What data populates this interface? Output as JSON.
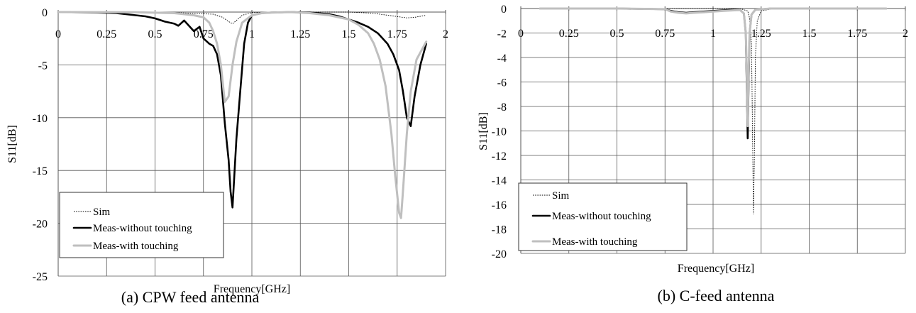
{
  "chart_data": [
    {
      "type": "line",
      "caption": "(a) CPW feed antenna",
      "xlabel": "Frequency[GHz]",
      "ylabel": "S11[dB]",
      "xlim": [
        0,
        2
      ],
      "ylim": [
        -25,
        0
      ],
      "x_ticks": [
        0,
        0.25,
        0.5,
        0.75,
        1,
        1.25,
        1.5,
        1.75,
        2
      ],
      "x_tick_labels": [
        "0",
        "0.25",
        "0.5",
        "0.75",
        "1",
        "1.25",
        "1.5",
        "1.75",
        "2"
      ],
      "y_ticks": [
        0,
        -5,
        -10,
        -15,
        -20,
        -25
      ],
      "y_tick_labels": [
        "0",
        "-5",
        "-10",
        "-15",
        "-20",
        "-25"
      ],
      "grid": true,
      "legend_position": "bottom-left",
      "series": [
        {
          "name": "Sim",
          "style": "dotted",
          "color": "#000000",
          "x": [
            0.0,
            0.3,
            0.6,
            0.8,
            0.85,
            0.88,
            0.9,
            0.92,
            0.95,
            1.0,
            1.2,
            1.5,
            1.62,
            1.68,
            1.72,
            1.76,
            1.8,
            1.84,
            1.9
          ],
          "y": [
            0,
            -0.02,
            -0.05,
            -0.2,
            -0.5,
            -0.9,
            -1.1,
            -0.8,
            -0.3,
            -0.05,
            0,
            0,
            -0.1,
            -0.25,
            -0.35,
            -0.45,
            -0.55,
            -0.5,
            -0.3
          ]
        },
        {
          "name": "Meas-without touching",
          "style": "solid",
          "color": "#000000",
          "x": [
            0.0,
            0.2,
            0.3,
            0.35,
            0.4,
            0.45,
            0.5,
            0.55,
            0.6,
            0.62,
            0.65,
            0.7,
            0.73,
            0.75,
            0.78,
            0.8,
            0.82,
            0.84,
            0.86,
            0.88,
            0.89,
            0.9,
            0.92,
            0.94,
            0.96,
            0.98,
            1.0,
            1.05,
            1.1,
            1.2,
            1.3,
            1.4,
            1.45,
            1.5,
            1.55,
            1.6,
            1.65,
            1.7,
            1.73,
            1.76,
            1.78,
            1.8,
            1.82,
            1.84,
            1.87,
            1.9
          ],
          "y": [
            0,
            -0.05,
            -0.1,
            -0.2,
            -0.3,
            -0.4,
            -0.6,
            -0.9,
            -1.1,
            -1.3,
            -0.8,
            -1.8,
            -1.4,
            -2.5,
            -3.0,
            -3.2,
            -4.0,
            -6.0,
            -10.5,
            -14.0,
            -17.0,
            -18.5,
            -12.0,
            -7.5,
            -3.0,
            -1.0,
            -0.3,
            -0.1,
            -0.05,
            0,
            -0.05,
            -0.2,
            -0.4,
            -0.7,
            -1.0,
            -1.4,
            -2.0,
            -3.0,
            -4.0,
            -5.5,
            -7.5,
            -10.0,
            -10.8,
            -8.0,
            -5.0,
            -3.0
          ]
        },
        {
          "name": "Meas-with touching",
          "style": "solid",
          "color": "#bfbfbf",
          "x": [
            0.0,
            0.4,
            0.6,
            0.7,
            0.75,
            0.78,
            0.8,
            0.82,
            0.84,
            0.86,
            0.88,
            0.9,
            0.92,
            0.95,
            1.0,
            1.05,
            1.1,
            1.2,
            1.3,
            1.4,
            1.5,
            1.55,
            1.6,
            1.63,
            1.66,
            1.69,
            1.72,
            1.74,
            1.76,
            1.77,
            1.78,
            1.8,
            1.82,
            1.85,
            1.9
          ],
          "y": [
            0,
            -0.02,
            -0.1,
            -0.3,
            -0.5,
            -1.0,
            -1.8,
            -3.0,
            -5.0,
            -8.5,
            -8.0,
            -5.0,
            -2.8,
            -1.0,
            -0.3,
            -0.1,
            -0.05,
            0,
            -0.1,
            -0.3,
            -0.7,
            -1.2,
            -2.0,
            -3.0,
            -4.5,
            -7.0,
            -11.5,
            -15.5,
            -19.0,
            -19.5,
            -17.0,
            -11.5,
            -7.5,
            -4.5,
            -2.8
          ]
        }
      ]
    },
    {
      "type": "line",
      "caption": "(b) C-feed antenna",
      "xlabel": "Frequency[GHz]",
      "ylabel": "S11[dB]",
      "xlim": [
        0,
        2
      ],
      "ylim": [
        -20,
        0
      ],
      "x_ticks": [
        0,
        0.25,
        0.5,
        0.75,
        1,
        1.25,
        1.5,
        1.75,
        2
      ],
      "x_tick_labels": [
        "0",
        "0.25",
        "0.5",
        "0.75",
        "1",
        "1.25",
        "1.5",
        "1.75",
        "2"
      ],
      "y_ticks": [
        0,
        -2,
        -4,
        -6,
        -8,
        -10,
        -12,
        -14,
        -16,
        -18,
        -20
      ],
      "y_tick_labels": [
        "0",
        "-2",
        "-4",
        "-6",
        "-8",
        "-10",
        "-12",
        "-14",
        "-16",
        "-18",
        "-20"
      ],
      "grid": true,
      "legend_position": "bottom-left",
      "series": [
        {
          "name": "Sim",
          "style": "dotted",
          "color": "#000000",
          "x": [
            0.1,
            0.5,
            0.75,
            1.0,
            1.15,
            1.18,
            1.19,
            1.2,
            1.205,
            1.21,
            1.215,
            1.22,
            1.23,
            1.25,
            1.3,
            1.6,
            1.9
          ],
          "y": [
            0,
            0,
            0,
            0,
            -0.05,
            -0.2,
            -0.8,
            -3.0,
            -10.0,
            -16.8,
            -12.0,
            -4.0,
            -1.0,
            -0.2,
            -0.05,
            0,
            0
          ]
        },
        {
          "name": "Meas-without touching",
          "style": "solid",
          "color": "#000000",
          "x": [
            0.1,
            0.5,
            0.75,
            0.78,
            0.82,
            0.86,
            0.9,
            0.95,
            1.0,
            1.05,
            1.1,
            1.14,
            1.16,
            1.17,
            1.175,
            1.18,
            1.185,
            1.19,
            1.2,
            1.22,
            1.3,
            1.6,
            1.9
          ],
          "y": [
            0,
            0,
            -0.05,
            -0.2,
            -0.3,
            -0.35,
            -0.3,
            -0.25,
            -0.2,
            -0.15,
            -0.1,
            -0.1,
            -0.4,
            -2.0,
            -6.0,
            -10.6,
            -6.0,
            -2.0,
            -0.5,
            -0.1,
            0,
            0,
            0
          ]
        },
        {
          "name": "Meas-with touching",
          "style": "solid",
          "color": "#bfbfbf",
          "x": [
            0.1,
            0.5,
            0.75,
            0.78,
            0.82,
            0.86,
            0.9,
            0.95,
            1.0,
            1.05,
            1.1,
            1.14,
            1.16,
            1.17,
            1.175,
            1.18,
            1.185,
            1.19,
            1.2,
            1.22,
            1.3,
            1.6,
            1.9
          ],
          "y": [
            0,
            0,
            -0.05,
            -0.25,
            -0.35,
            -0.4,
            -0.35,
            -0.3,
            -0.25,
            -0.2,
            -0.15,
            -0.12,
            -0.4,
            -2.0,
            -5.0,
            -9.6,
            -5.0,
            -2.0,
            -0.5,
            -0.1,
            0,
            0,
            0
          ]
        }
      ]
    }
  ]
}
